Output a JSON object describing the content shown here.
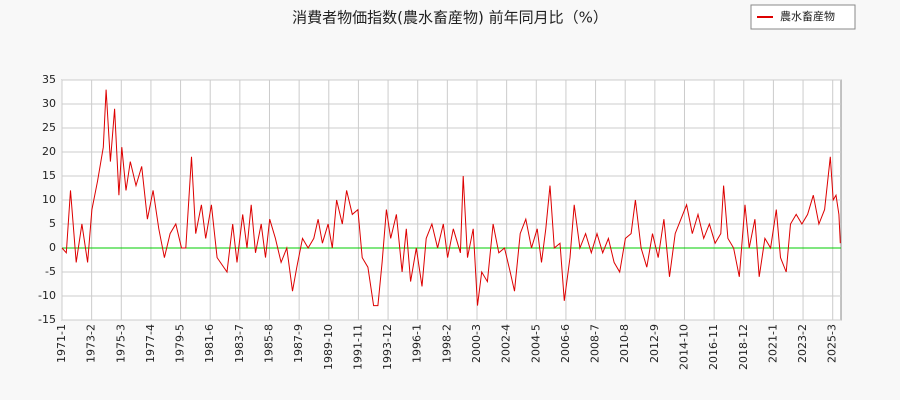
{
  "chart_data": {
    "type": "line",
    "title": "消費者物価指数(農水畜産物) 前年同月比（%）",
    "x": [
      1971.0,
      1971.3,
      1971.6,
      1972.0,
      1972.4,
      1972.8,
      1973.1,
      1973.5,
      1973.9,
      1974.1,
      1974.4,
      1974.7,
      1975.0,
      1975.2,
      1975.5,
      1975.8,
      1976.2,
      1976.6,
      1977.0,
      1977.4,
      1977.8,
      1978.2,
      1978.6,
      1979.0,
      1979.4,
      1979.7,
      1980.1,
      1980.4,
      1980.8,
      1981.1,
      1981.5,
      1981.9,
      1982.6,
      1983.0,
      1983.3,
      1983.7,
      1984.0,
      1984.3,
      1984.6,
      1985.0,
      1985.3,
      1985.6,
      1986.0,
      1986.4,
      1986.8,
      1987.2,
      1987.5,
      1987.9,
      1988.3,
      1988.7,
      1989.0,
      1989.3,
      1989.7,
      1990.0,
      1990.3,
      1990.7,
      1991.0,
      1991.4,
      1991.8,
      1992.1,
      1992.5,
      1992.9,
      1993.2,
      1993.5,
      1993.8,
      1994.1,
      1994.5,
      1994.9,
      1995.2,
      1995.5,
      1995.9,
      1996.3,
      1996.6,
      1997.0,
      1997.4,
      1997.8,
      1998.1,
      1998.5,
      1999.0,
      1999.2,
      1999.5,
      1999.9,
      2000.2,
      2000.5,
      2000.9,
      2001.3,
      2001.7,
      2002.1,
      2002.5,
      2002.8,
      2003.2,
      2003.6,
      2004.0,
      2004.4,
      2004.7,
      2005.0,
      2005.3,
      2005.6,
      2006.0,
      2006.3,
      2006.7,
      2007.0,
      2007.4,
      2007.8,
      2008.2,
      2008.6,
      2009.0,
      2009.4,
      2009.8,
      2010.2,
      2010.6,
      2011.0,
      2011.3,
      2011.7,
      2012.1,
      2012.5,
      2012.9,
      2013.3,
      2013.7,
      2014.1,
      2014.5,
      2014.9,
      2015.3,
      2015.7,
      2016.1,
      2016.5,
      2016.9,
      2017.3,
      2017.5,
      2017.8,
      2018.2,
      2018.6,
      2019.0,
      2019.3,
      2019.7,
      2020.0,
      2020.4,
      2020.8,
      2021.2,
      2021.5,
      2021.9,
      2022.2,
      2022.6,
      2023.0,
      2023.4,
      2023.8,
      2024.2,
      2024.6,
      2025.0,
      2025.2,
      2025.4,
      2025.6,
      2025.7
    ],
    "series": [
      {
        "name": "農水畜産物",
        "color": "#dd0000",
        "values": [
          0,
          -1,
          12,
          -3,
          5,
          -3,
          8,
          14,
          21,
          33,
          18,
          29,
          11,
          21,
          12,
          18,
          13,
          17,
          6,
          12,
          4,
          -2,
          3,
          5,
          0,
          0,
          19,
          3,
          9,
          2,
          9,
          -2,
          -5,
          5,
          -3,
          7,
          0,
          9,
          -1,
          5,
          -2,
          6,
          2,
          -3,
          0,
          -9,
          -4,
          2,
          0,
          2,
          6,
          1,
          5,
          0,
          10,
          5,
          12,
          7,
          8,
          -2,
          -4,
          -12,
          -12,
          -3,
          8,
          2,
          7,
          -5,
          4,
          -7,
          0,
          -8,
          2,
          5,
          0,
          5,
          -2,
          4,
          -1,
          15,
          -2,
          4,
          -12,
          -5,
          -7,
          5,
          -1,
          0,
          -5,
          -9,
          3,
          6,
          0,
          4,
          -3,
          4,
          13,
          0,
          1,
          -11,
          -2,
          9,
          0,
          3,
          -1,
          3,
          -1,
          2,
          -3,
          -5,
          2,
          3,
          10,
          0,
          -4,
          3,
          -2,
          6,
          -6,
          3,
          6,
          9,
          3,
          7,
          2,
          5,
          1,
          3,
          13,
          2,
          0,
          -6,
          9,
          0,
          6,
          -6,
          2,
          0,
          8,
          -2,
          -5,
          5,
          7,
          5,
          7,
          11,
          5,
          8,
          19,
          10,
          11,
          7,
          1
        ]
      }
    ],
    "xlim": [
      1971.0,
      2025.75
    ],
    "xticks": [
      {
        "value": 1971.0,
        "label": "1971-1"
      },
      {
        "value": 1973.083,
        "label": "1973-2"
      },
      {
        "value": 1975.167,
        "label": "1975-3"
      },
      {
        "value": 1977.25,
        "label": "1977-4"
      },
      {
        "value": 1979.333,
        "label": "1979-5"
      },
      {
        "value": 1981.417,
        "label": "1981-6"
      },
      {
        "value": 1983.5,
        "label": "1983-7"
      },
      {
        "value": 1985.583,
        "label": "1985-8"
      },
      {
        "value": 1987.667,
        "label": "1987-9"
      },
      {
        "value": 1989.75,
        "label": "1989-10"
      },
      {
        "value": 1991.833,
        "label": "1991-11"
      },
      {
        "value": 1993.917,
        "label": "1993-12"
      },
      {
        "value": 1996.0,
        "label": "1996-1"
      },
      {
        "value": 1998.083,
        "label": "1998-2"
      },
      {
        "value": 2000.167,
        "label": "2000-3"
      },
      {
        "value": 2002.25,
        "label": "2002-4"
      },
      {
        "value": 2004.333,
        "label": "2004-5"
      },
      {
        "value": 2006.417,
        "label": "2006-6"
      },
      {
        "value": 2008.5,
        "label": "2008-7"
      },
      {
        "value": 2010.583,
        "label": "2010-8"
      },
      {
        "value": 2012.667,
        "label": "2012-9"
      },
      {
        "value": 2014.75,
        "label": "2014-10"
      },
      {
        "value": 2016.833,
        "label": "2016-11"
      },
      {
        "value": 2018.917,
        "label": "2018-12"
      },
      {
        "value": 2021.0,
        "label": "2021-1"
      },
      {
        "value": 2023.083,
        "label": "2023-2"
      },
      {
        "value": 2025.167,
        "label": "2025-3"
      }
    ],
    "ylim": [
      -15,
      35
    ],
    "yticks": [
      -15,
      -10,
      -5,
      0,
      5,
      10,
      15,
      20,
      25,
      30,
      35
    ],
    "grid": true,
    "zero_line_color": "#00cc00",
    "legend": "top-right"
  }
}
